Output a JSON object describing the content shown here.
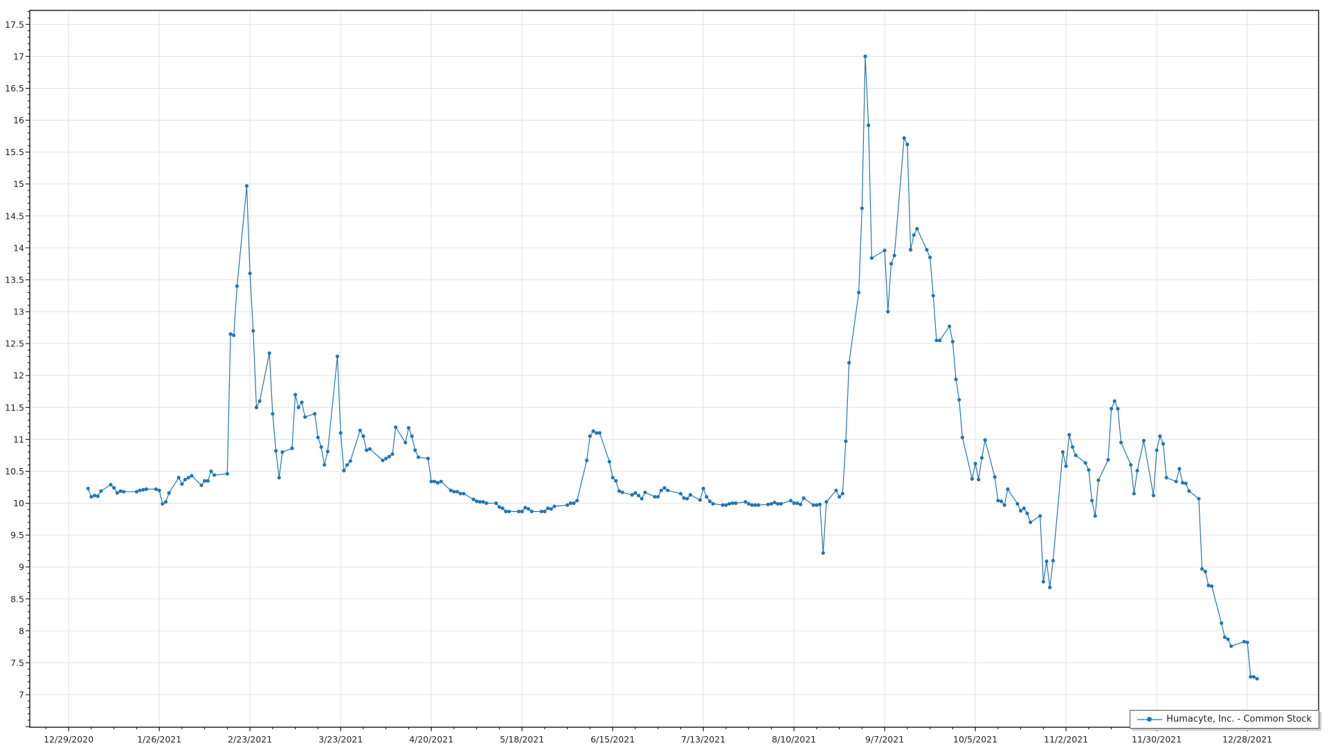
{
  "chart_data": {
    "type": "line",
    "title": "",
    "xlabel": "",
    "ylabel": "",
    "xlim": [
      "2020-12-17",
      "2022-01-19"
    ],
    "ylim": [
      6.49,
      17.72
    ],
    "x_ticks": [
      "12/29/2020",
      "1/26/2021",
      "2/23/2021",
      "3/23/2021",
      "4/20/2021",
      "5/18/2021",
      "6/15/2021",
      "7/13/2021",
      "8/10/2021",
      "9/7/2021",
      "10/5/2021",
      "11/2/2021",
      "11/30/2021",
      "12/28/2021"
    ],
    "y_ticks": [
      "7",
      "7.5",
      "8",
      "8.5",
      "9",
      "9.5",
      "10",
      "10.5",
      "11",
      "11.5",
      "12",
      "12.5",
      "13",
      "13.5",
      "14",
      "14.5",
      "15",
      "15.5",
      "16",
      "16.5",
      "17",
      "17.5"
    ],
    "grid": true,
    "legend_position": "bottom-right",
    "series": [
      {
        "name": "Humacyte, Inc. - Common Stock",
        "color": "#1f77b4",
        "points": [
          [
            "2021-01-04",
            10.23
          ],
          [
            "2021-01-05",
            10.1
          ],
          [
            "2021-01-06",
            10.12
          ],
          [
            "2021-01-07",
            10.11
          ],
          [
            "2021-01-08",
            10.19
          ],
          [
            "2021-01-11",
            10.29
          ],
          [
            "2021-01-12",
            10.24
          ],
          [
            "2021-01-13",
            10.16
          ],
          [
            "2021-01-14",
            10.19
          ],
          [
            "2021-01-15",
            10.18
          ],
          [
            "2021-01-19",
            10.18
          ],
          [
            "2021-01-20",
            10.2
          ],
          [
            "2021-01-21",
            10.21
          ],
          [
            "2021-01-22",
            10.22
          ],
          [
            "2021-01-25",
            10.22
          ],
          [
            "2021-01-26",
            10.2
          ],
          [
            "2021-01-27",
            9.99
          ],
          [
            "2021-01-28",
            10.02
          ],
          [
            "2021-01-29",
            10.16
          ],
          [
            "2021-02-01",
            10.4
          ],
          [
            "2021-02-02",
            10.3
          ],
          [
            "2021-02-03",
            10.37
          ],
          [
            "2021-02-04",
            10.4
          ],
          [
            "2021-02-05",
            10.43
          ],
          [
            "2021-02-08",
            10.28
          ],
          [
            "2021-02-09",
            10.35
          ],
          [
            "2021-02-10",
            10.35
          ],
          [
            "2021-02-11",
            10.5
          ],
          [
            "2021-02-12",
            10.44
          ],
          [
            "2021-02-16",
            10.46
          ],
          [
            "2021-02-17",
            12.65
          ],
          [
            "2021-02-18",
            12.63
          ],
          [
            "2021-02-19",
            13.4
          ],
          [
            "2021-02-22",
            14.97
          ],
          [
            "2021-02-23",
            13.6
          ],
          [
            "2021-02-24",
            12.7
          ],
          [
            "2021-02-25",
            11.5
          ],
          [
            "2021-02-26",
            11.6
          ],
          [
            "2021-03-01",
            12.35
          ],
          [
            "2021-03-02",
            11.4
          ],
          [
            "2021-03-03",
            10.82
          ],
          [
            "2021-03-04",
            10.4
          ],
          [
            "2021-03-05",
            10.8
          ],
          [
            "2021-03-08",
            10.86
          ],
          [
            "2021-03-09",
            11.7
          ],
          [
            "2021-03-10",
            11.5
          ],
          [
            "2021-03-11",
            11.58
          ],
          [
            "2021-03-12",
            11.35
          ],
          [
            "2021-03-15",
            11.4
          ],
          [
            "2021-03-16",
            11.03
          ],
          [
            "2021-03-17",
            10.88
          ],
          [
            "2021-03-18",
            10.6
          ],
          [
            "2021-03-19",
            10.81
          ],
          [
            "2021-03-22",
            12.3
          ],
          [
            "2021-03-23",
            11.1
          ],
          [
            "2021-03-24",
            10.51
          ],
          [
            "2021-03-25",
            10.6
          ],
          [
            "2021-03-26",
            10.66
          ],
          [
            "2021-03-29",
            11.14
          ],
          [
            "2021-03-30",
            11.05
          ],
          [
            "2021-03-31",
            10.83
          ],
          [
            "2021-04-01",
            10.85
          ],
          [
            "2021-04-05",
            10.67
          ],
          [
            "2021-04-06",
            10.7
          ],
          [
            "2021-04-07",
            10.73
          ],
          [
            "2021-04-08",
            10.77
          ],
          [
            "2021-04-09",
            11.19
          ],
          [
            "2021-04-12",
            10.95
          ],
          [
            "2021-04-13",
            11.18
          ],
          [
            "2021-04-14",
            11.05
          ],
          [
            "2021-04-15",
            10.83
          ],
          [
            "2021-04-16",
            10.72
          ],
          [
            "2021-04-19",
            10.7
          ],
          [
            "2021-04-20",
            10.34
          ],
          [
            "2021-04-21",
            10.34
          ],
          [
            "2021-04-22",
            10.32
          ],
          [
            "2021-04-23",
            10.34
          ],
          [
            "2021-04-26",
            10.2
          ],
          [
            "2021-04-27",
            10.18
          ],
          [
            "2021-04-28",
            10.18
          ],
          [
            "2021-04-29",
            10.15
          ],
          [
            "2021-04-30",
            10.15
          ],
          [
            "2021-05-03",
            10.06
          ],
          [
            "2021-05-04",
            10.03
          ],
          [
            "2021-05-05",
            10.02
          ],
          [
            "2021-05-06",
            10.02
          ],
          [
            "2021-05-07",
            10.0
          ],
          [
            "2021-05-10",
            10.0
          ],
          [
            "2021-05-11",
            9.94
          ],
          [
            "2021-05-12",
            9.92
          ],
          [
            "2021-05-13",
            9.87
          ],
          [
            "2021-05-14",
            9.87
          ],
          [
            "2021-05-17",
            9.87
          ],
          [
            "2021-05-18",
            9.87
          ],
          [
            "2021-05-19",
            9.93
          ],
          [
            "2021-05-20",
            9.91
          ],
          [
            "2021-05-21",
            9.87
          ],
          [
            "2021-05-24",
            9.87
          ],
          [
            "2021-05-25",
            9.87
          ],
          [
            "2021-05-26",
            9.92
          ],
          [
            "2021-05-27",
            9.91
          ],
          [
            "2021-05-28",
            9.95
          ],
          [
            "2021-06-01",
            9.97
          ],
          [
            "2021-06-02",
            10.0
          ],
          [
            "2021-06-03",
            10.0
          ],
          [
            "2021-06-04",
            10.04
          ],
          [
            "2021-06-07",
            10.67
          ],
          [
            "2021-06-08",
            11.05
          ],
          [
            "2021-06-09",
            11.13
          ],
          [
            "2021-06-10",
            11.1
          ],
          [
            "2021-06-11",
            11.1
          ],
          [
            "2021-06-14",
            10.65
          ],
          [
            "2021-06-15",
            10.4
          ],
          [
            "2021-06-16",
            10.35
          ],
          [
            "2021-06-17",
            10.19
          ],
          [
            "2021-06-18",
            10.17
          ],
          [
            "2021-06-21",
            10.13
          ],
          [
            "2021-06-22",
            10.16
          ],
          [
            "2021-06-23",
            10.12
          ],
          [
            "2021-06-24",
            10.07
          ],
          [
            "2021-06-25",
            10.17
          ],
          [
            "2021-06-28",
            10.1
          ],
          [
            "2021-06-29",
            10.1
          ],
          [
            "2021-06-30",
            10.2
          ],
          [
            "2021-07-01",
            10.24
          ],
          [
            "2021-07-02",
            10.2
          ],
          [
            "2021-07-06",
            10.15
          ],
          [
            "2021-07-07",
            10.08
          ],
          [
            "2021-07-08",
            10.07
          ],
          [
            "2021-07-09",
            10.13
          ],
          [
            "2021-07-12",
            10.05
          ],
          [
            "2021-07-13",
            10.23
          ],
          [
            "2021-07-14",
            10.1
          ],
          [
            "2021-07-15",
            10.03
          ],
          [
            "2021-07-16",
            9.99
          ],
          [
            "2021-07-19",
            9.97
          ],
          [
            "2021-07-20",
            9.97
          ],
          [
            "2021-07-21",
            9.99
          ],
          [
            "2021-07-22",
            10.0
          ],
          [
            "2021-07-23",
            10.0
          ],
          [
            "2021-07-26",
            10.02
          ],
          [
            "2021-07-27",
            9.99
          ],
          [
            "2021-07-28",
            9.97
          ],
          [
            "2021-07-29",
            9.97
          ],
          [
            "2021-07-30",
            9.97
          ],
          [
            "2021-08-02",
            9.98
          ],
          [
            "2021-08-03",
            9.99
          ],
          [
            "2021-08-04",
            10.01
          ],
          [
            "2021-08-05",
            9.99
          ],
          [
            "2021-08-06",
            9.99
          ],
          [
            "2021-08-09",
            10.04
          ],
          [
            "2021-08-10",
            10.0
          ],
          [
            "2021-08-11",
            10.0
          ],
          [
            "2021-08-12",
            9.98
          ],
          [
            "2021-08-13",
            10.08
          ],
          [
            "2021-08-16",
            9.97
          ],
          [
            "2021-08-17",
            9.97
          ],
          [
            "2021-08-18",
            9.98
          ],
          [
            "2021-08-19",
            9.22
          ],
          [
            "2021-08-20",
            10.02
          ],
          [
            "2021-08-23",
            10.2
          ],
          [
            "2021-08-24",
            10.1
          ],
          [
            "2021-08-25",
            10.15
          ],
          [
            "2021-08-26",
            10.97
          ],
          [
            "2021-08-27",
            12.2
          ],
          [
            "2021-08-30",
            13.3
          ],
          [
            "2021-08-31",
            14.62
          ],
          [
            "2021-09-01",
            17.0
          ],
          [
            "2021-09-02",
            15.92
          ],
          [
            "2021-09-03",
            13.84
          ],
          [
            "2021-09-07",
            13.96
          ],
          [
            "2021-09-08",
            13.0
          ],
          [
            "2021-09-09",
            13.75
          ],
          [
            "2021-09-10",
            13.88
          ],
          [
            "2021-09-13",
            15.72
          ],
          [
            "2021-09-14",
            15.62
          ],
          [
            "2021-09-15",
            13.97
          ],
          [
            "2021-09-16",
            14.2
          ],
          [
            "2021-09-17",
            14.3
          ],
          [
            "2021-09-20",
            13.97
          ],
          [
            "2021-09-21",
            13.85
          ],
          [
            "2021-09-22",
            13.25
          ],
          [
            "2021-09-23",
            12.55
          ],
          [
            "2021-09-24",
            12.55
          ],
          [
            "2021-09-27",
            12.77
          ],
          [
            "2021-09-28",
            12.53
          ],
          [
            "2021-09-29",
            11.94
          ],
          [
            "2021-09-30",
            11.62
          ],
          [
            "2021-10-01",
            11.03
          ],
          [
            "2021-10-04",
            10.38
          ],
          [
            "2021-10-05",
            10.62
          ],
          [
            "2021-10-06",
            10.37
          ],
          [
            "2021-10-07",
            10.71
          ],
          [
            "2021-10-08",
            10.99
          ],
          [
            "2021-10-11",
            10.41
          ],
          [
            "2021-10-12",
            10.04
          ],
          [
            "2021-10-13",
            10.03
          ],
          [
            "2021-10-14",
            9.97
          ],
          [
            "2021-10-15",
            10.22
          ],
          [
            "2021-10-18",
            9.99
          ],
          [
            "2021-10-19",
            9.88
          ],
          [
            "2021-10-20",
            9.92
          ],
          [
            "2021-10-21",
            9.84
          ],
          [
            "2021-10-22",
            9.7
          ],
          [
            "2021-10-25",
            9.8
          ],
          [
            "2021-10-26",
            8.77
          ],
          [
            "2021-10-27",
            9.09
          ],
          [
            "2021-10-28",
            8.68
          ],
          [
            "2021-10-29",
            9.1
          ],
          [
            "2021-11-01",
            10.8
          ],
          [
            "2021-11-02",
            10.58
          ],
          [
            "2021-11-03",
            11.07
          ],
          [
            "2021-11-04",
            10.88
          ],
          [
            "2021-11-05",
            10.75
          ],
          [
            "2021-11-08",
            10.63
          ],
          [
            "2021-11-09",
            10.52
          ],
          [
            "2021-11-10",
            10.04
          ],
          [
            "2021-11-11",
            9.8
          ],
          [
            "2021-11-12",
            10.36
          ],
          [
            "2021-11-15",
            10.68
          ],
          [
            "2021-11-16",
            11.48
          ],
          [
            "2021-11-17",
            11.6
          ],
          [
            "2021-11-18",
            11.48
          ],
          [
            "2021-11-19",
            10.95
          ],
          [
            "2021-11-22",
            10.6
          ],
          [
            "2021-11-23",
            10.15
          ],
          [
            "2021-11-24",
            10.51
          ],
          [
            "2021-11-26",
            10.98
          ],
          [
            "2021-11-29",
            10.12
          ],
          [
            "2021-11-30",
            10.83
          ],
          [
            "2021-12-01",
            11.05
          ],
          [
            "2021-12-02",
            10.93
          ],
          [
            "2021-12-03",
            10.4
          ],
          [
            "2021-12-06",
            10.34
          ],
          [
            "2021-12-07",
            10.54
          ],
          [
            "2021-12-08",
            10.32
          ],
          [
            "2021-12-09",
            10.31
          ],
          [
            "2021-12-10",
            10.19
          ],
          [
            "2021-12-13",
            10.07
          ],
          [
            "2021-12-14",
            8.97
          ],
          [
            "2021-12-15",
            8.93
          ],
          [
            "2021-12-16",
            8.71
          ],
          [
            "2021-12-17",
            8.7
          ],
          [
            "2021-12-20",
            8.12
          ],
          [
            "2021-12-21",
            7.9
          ],
          [
            "2021-12-22",
            7.87
          ],
          [
            "2021-12-23",
            7.76
          ],
          [
            "2021-12-27",
            7.83
          ],
          [
            "2021-12-28",
            7.82
          ],
          [
            "2021-12-29",
            7.28
          ],
          [
            "2021-12-30",
            7.28
          ],
          [
            "2021-12-31",
            7.25
          ]
        ]
      }
    ]
  }
}
